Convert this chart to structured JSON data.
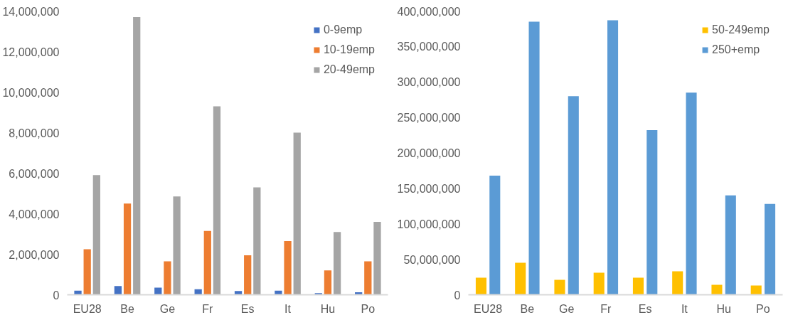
{
  "chart_data": [
    {
      "type": "bar",
      "categories": [
        "EU28",
        "Be",
        "Ge",
        "Fr",
        "Es",
        "It",
        "Hu",
        "Po"
      ],
      "series": [
        {
          "name": "0-9emp",
          "color": "#4472c4",
          "values": [
            200000,
            430000,
            350000,
            270000,
            180000,
            200000,
            80000,
            120000
          ]
        },
        {
          "name": "10-19emp",
          "color": "#ed7d31",
          "values": [
            2250000,
            4500000,
            1650000,
            3150000,
            1950000,
            2650000,
            1200000,
            1650000
          ]
        },
        {
          "name": "20-49emp",
          "color": "#a5a5a5",
          "values": [
            5900000,
            13700000,
            4850000,
            9300000,
            5300000,
            8000000,
            3100000,
            3600000
          ]
        }
      ],
      "ylim": [
        0,
        14000000
      ],
      "yticks": [
        {
          "value": 0,
          "label": "0"
        },
        {
          "value": 2000000,
          "label": "2,000,000"
        },
        {
          "value": 4000000,
          "label": "4,000,000"
        },
        {
          "value": 6000000,
          "label": "6,000,000"
        },
        {
          "value": 8000000,
          "label": "8,000,000"
        },
        {
          "value": 10000000,
          "label": "10,000,000"
        },
        {
          "value": 12000000,
          "label": "12,000,000"
        },
        {
          "value": 14000000,
          "label": "14,000,000"
        }
      ],
      "grid": false,
      "legend": "top right"
    },
    {
      "type": "bar",
      "categories": [
        "EU28",
        "Be",
        "Ge",
        "Fr",
        "Es",
        "It",
        "Hu",
        "Po"
      ],
      "series": [
        {
          "name": "50-249emp",
          "color": "#ffc000",
          "values": [
            24000000,
            45000000,
            21000000,
            31000000,
            24000000,
            33000000,
            14000000,
            13000000
          ]
        },
        {
          "name": "250+emp",
          "color": "#5b9bd5",
          "values": [
            168000000,
            385000000,
            280000000,
            387000000,
            232000000,
            285000000,
            140000000,
            128000000
          ]
        }
      ],
      "ylim": [
        0,
        400000000
      ],
      "yticks": [
        {
          "value": 0,
          "label": "0"
        },
        {
          "value": 50000000,
          "label": "50,000,000"
        },
        {
          "value": 100000000,
          "label": "100,000,000"
        },
        {
          "value": 150000000,
          "label": "150,000,000"
        },
        {
          "value": 200000000,
          "label": "200,000,000"
        },
        {
          "value": 250000000,
          "label": "250,000,000"
        },
        {
          "value": 300000000,
          "label": "300,000,000"
        },
        {
          "value": 350000000,
          "label": "350,000,000"
        },
        {
          "value": 400000000,
          "label": "400,000,000"
        }
      ],
      "grid": false,
      "legend": "top right"
    }
  ]
}
